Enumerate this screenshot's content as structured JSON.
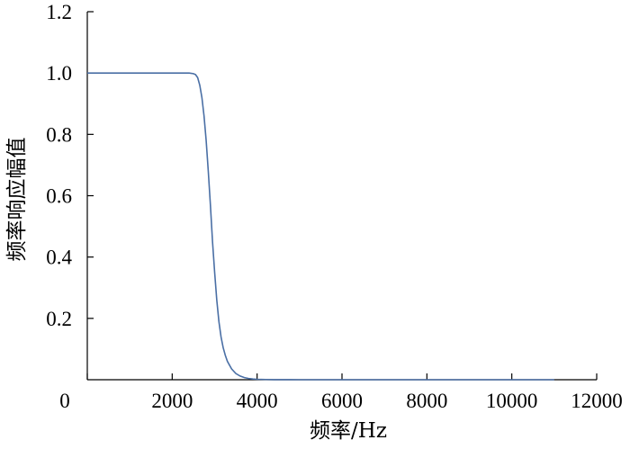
{
  "chart_data": {
    "type": "line",
    "title": "",
    "xlabel": "频率/Hz",
    "ylabel": "频率响应幅值",
    "xlim": [
      0,
      12000
    ],
    "ylim": [
      0,
      1.2
    ],
    "grid": false,
    "legend": "none",
    "x_ticks": [
      0,
      2000,
      4000,
      6000,
      8000,
      10000,
      12000
    ],
    "x_tick_labels": [
      "0",
      "2000",
      "4000",
      "6000",
      "8000",
      "10000",
      "12000"
    ],
    "y_ticks": [
      0.2,
      0.4,
      0.6,
      0.8,
      1.0,
      1.2
    ],
    "y_tick_labels": [
      "0.2",
      "0.4",
      "0.6",
      "0.8",
      "1.0",
      "1.2"
    ],
    "line_color": "#4a6fa5",
    "series": [
      {
        "x": [
          0,
          500,
          1000,
          1500,
          2000,
          2200,
          2400,
          2500,
          2550,
          2600,
          2650,
          2700,
          2750,
          2800,
          2850,
          2900,
          2950,
          3000,
          3050,
          3100,
          3150,
          3200,
          3250,
          3300,
          3400,
          3500,
          3600,
          3700,
          3800,
          3900,
          4000,
          4200,
          4400,
          4600,
          4800,
          5000,
          6000,
          7000,
          8000,
          9000,
          10000,
          11000
        ],
        "y": [
          1.0,
          1.0,
          1.0,
          1.0,
          1.0,
          1.0,
          1.0,
          0.998,
          0.995,
          0.985,
          0.96,
          0.92,
          0.86,
          0.78,
          0.68,
          0.57,
          0.45,
          0.35,
          0.26,
          0.19,
          0.14,
          0.105,
          0.08,
          0.06,
          0.035,
          0.02,
          0.012,
          0.007,
          0.004,
          0.0025,
          0.0015,
          0.0007,
          0.0003,
          0.0001,
          5e-05,
          0.0,
          0.0,
          0.0,
          0.0,
          0.0,
          0.0,
          0.0
        ]
      }
    ]
  }
}
